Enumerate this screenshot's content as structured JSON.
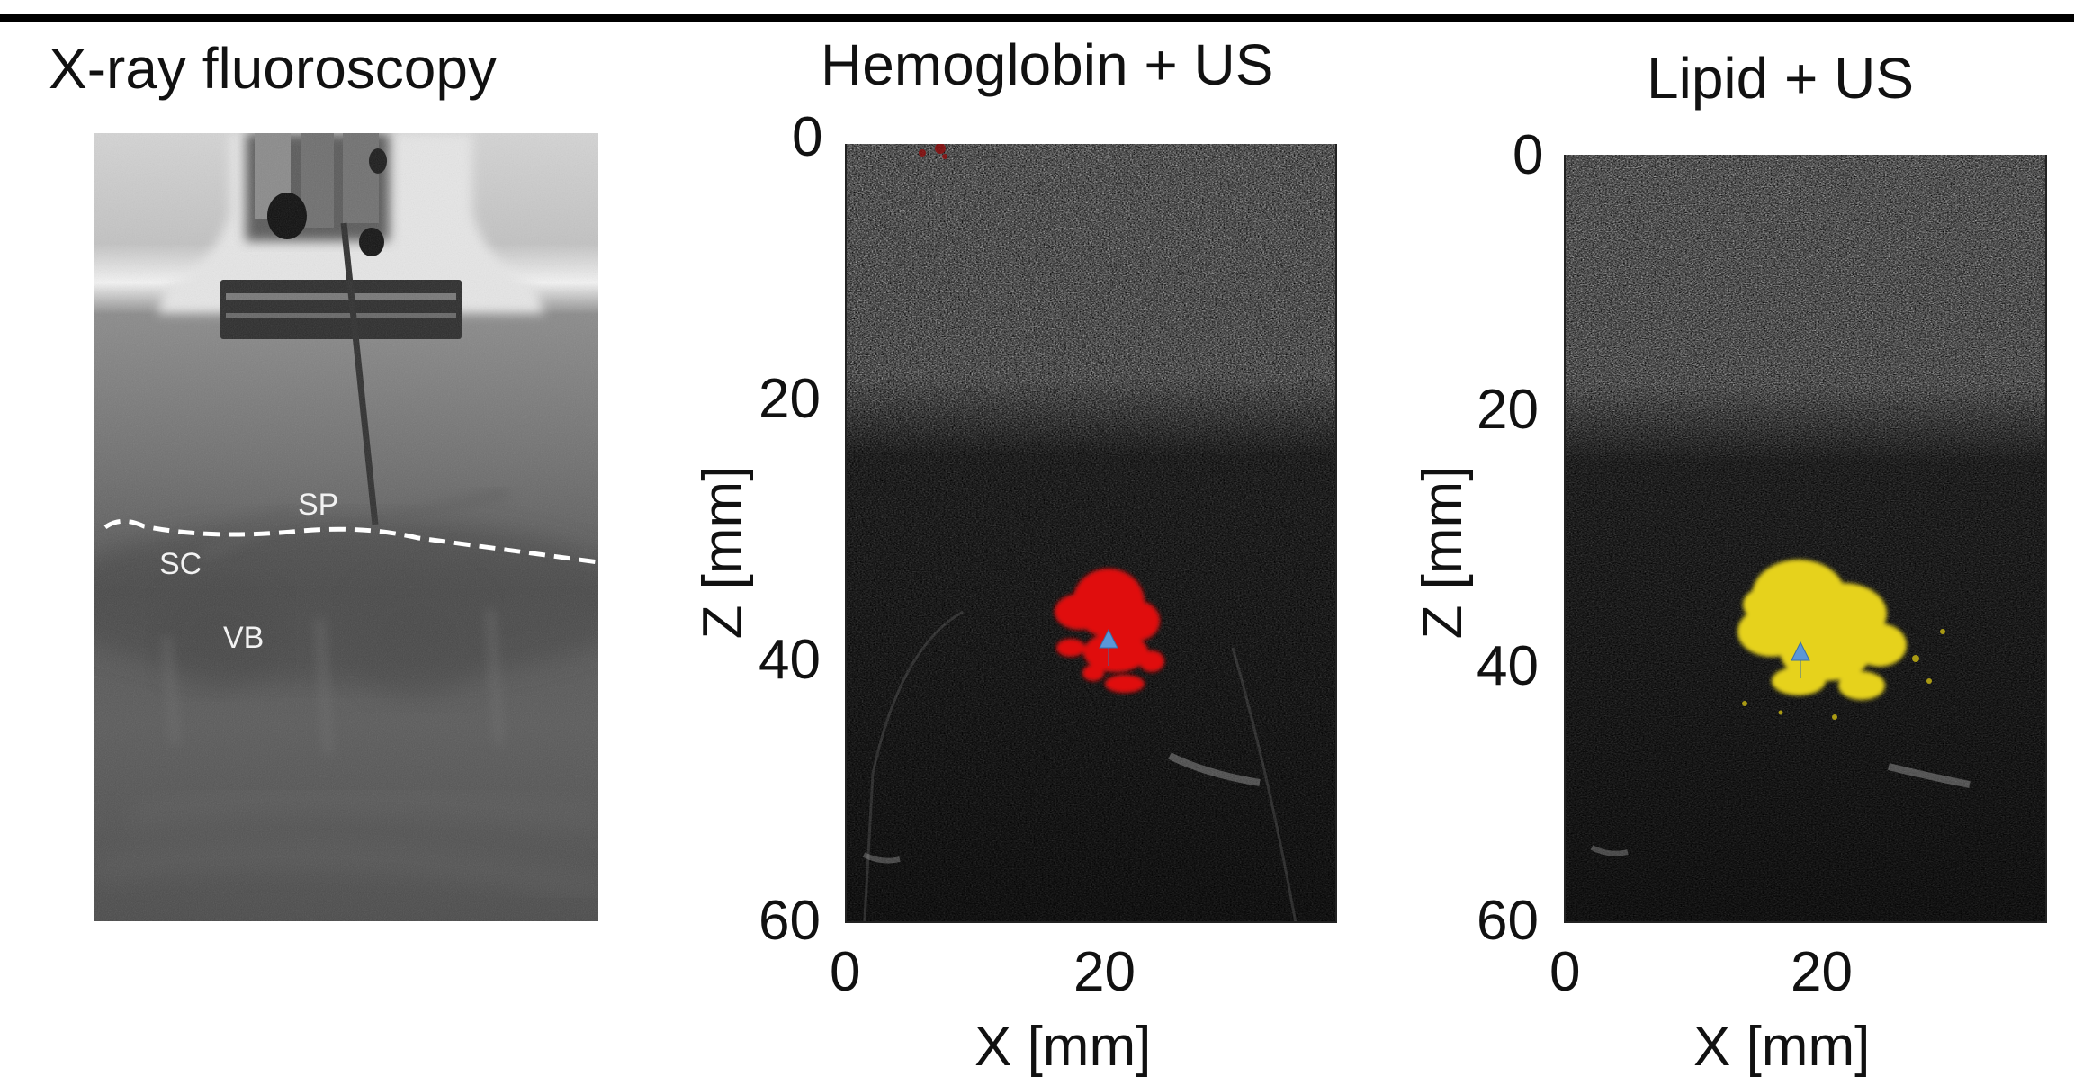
{
  "panels": [
    {
      "title": "X-ray fluoroscopy",
      "labels": {
        "sp": "SP",
        "sc": "SC",
        "vb": "VB"
      }
    },
    {
      "title": "Hemoglobin + US",
      "overlay_color": "#e01010",
      "ylabel": "Z [mm]",
      "xlabel": "X [mm]",
      "y_ticks": [
        "0",
        "20",
        "40",
        "60"
      ],
      "x_ticks": [
        "0",
        "20"
      ]
    },
    {
      "title": "Lipid + US",
      "overlay_color": "#e6d21a",
      "ylabel": "Z [mm]",
      "xlabel": "X [mm]",
      "y_ticks": [
        "0",
        "20",
        "40",
        "60"
      ],
      "x_ticks": [
        "0",
        "20"
      ]
    }
  ],
  "arrow_color": "#4f8fd6"
}
